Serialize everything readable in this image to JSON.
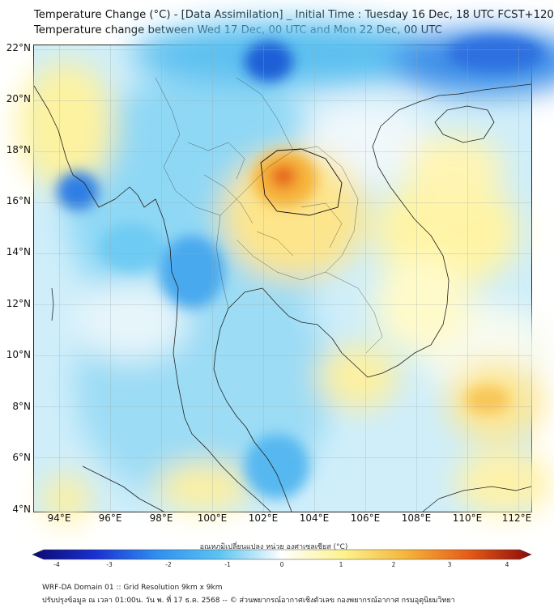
{
  "title_line1": "Temperature Change (°C) - [Data Assimilation] _ Initial Time : Tuesday 16 Dec, 18 UTC FCST+120",
  "title_line2": "Temperature change between Wed 17 Dec, 00 UTC and Mon 22 Dec, 00 UTC",
  "map": {
    "lon_range": [
      93,
      112.5
    ],
    "lat_range": [
      4,
      22.3
    ],
    "lat_ticks": [
      "22°N",
      "20°N",
      "18°N",
      "16°N",
      "14°N",
      "12°N",
      "10°N",
      "8°N",
      "6°N",
      "4°N"
    ],
    "lon_ticks": [
      "94°E",
      "96°E",
      "98°E",
      "100°E",
      "102°E",
      "104°E",
      "106°E",
      "108°E",
      "110°E",
      "112°E"
    ],
    "grid": true
  },
  "colorbar": {
    "title": "อุณหภูมิเปลี่ยนแปลง หน่วย องศาเซลเซียส (°C)",
    "ticks": [
      "-4",
      "-3",
      "-2",
      "-1",
      "0",
      "1",
      "2",
      "3",
      "4"
    ],
    "range": [
      -4,
      4
    ],
    "colors": [
      "#0b0a72",
      "#1b2fd0",
      "#2f8ff0",
      "#5cc4f2",
      "#ffffff",
      "#fdf28c",
      "#f5b43a",
      "#e55b17",
      "#8c0a0a"
    ]
  },
  "footer": {
    "line1": "WRF-DA Domain 01 :: Grid Resolution 9km x 9km",
    "line2": "ปรับปรุงข้อมูล ณ เวลา 01:00น. วัน พ. ที่ 17 ธ.ค. 2568 -- © ส่วนพยากรณ์อากาศเชิงตัวเลข กองพยากรณ์อากาศ กรมอุตุนิยมวิทยา"
  }
}
